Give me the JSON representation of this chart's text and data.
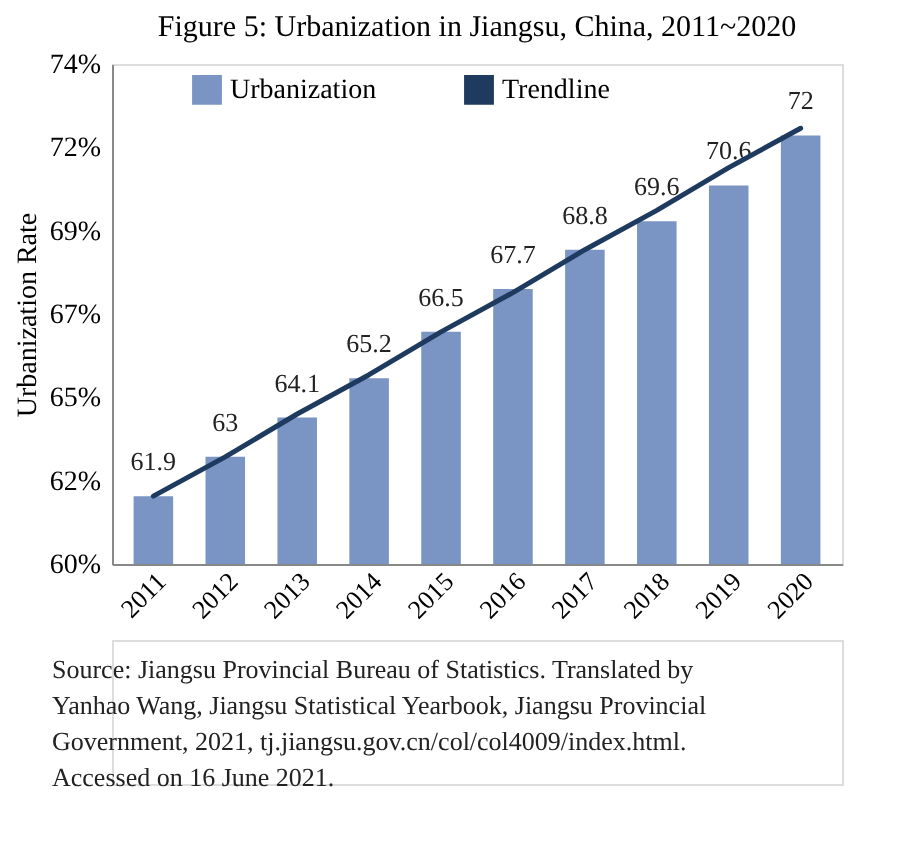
{
  "chart_data": {
    "type": "bar",
    "title": "Figure 5: Urbanization in Jiangsu, China, 2011~2020",
    "ylabel": "Urbanization Rate",
    "categories": [
      "2011",
      "2012",
      "2013",
      "2014",
      "2015",
      "2016",
      "2017",
      "2018",
      "2019",
      "2020"
    ],
    "series": [
      {
        "name": "Urbanization",
        "color": "#7a95c4",
        "values": [
          61.9,
          63,
          64.1,
          65.2,
          66.5,
          67.7,
          68.8,
          69.6,
          70.6,
          72
        ],
        "value_labels": [
          "61.9",
          "63",
          "64.1",
          "65.2",
          "66.5",
          "67.7",
          "68.8",
          "69.6",
          "70.6",
          "72"
        ]
      },
      {
        "name": "Trendline",
        "type": "line",
        "color": "#1f3a5f",
        "values": [
          61.9,
          63.0,
          64.2,
          65.3,
          66.5,
          67.6,
          68.8,
          69.9,
          71.1,
          72.2
        ]
      }
    ],
    "ylim": [
      60,
      74
    ],
    "yticks": [
      {
        "value": 60,
        "label": "60%"
      },
      {
        "value": 62.333,
        "label": "62%"
      },
      {
        "value": 64.667,
        "label": "65%"
      },
      {
        "value": 67,
        "label": "67%"
      },
      {
        "value": 69.333,
        "label": "69%"
      },
      {
        "value": 71.667,
        "label": "72%"
      },
      {
        "value": 74,
        "label": "74%"
      }
    ],
    "grid": false,
    "legend": "top",
    "annotations": [
      "Source: Jiangsu Provincial Bureau of Statistics. Translated by Yanhao Wang, Jiangsu Statistical Yearbook, Jiangsu Provincial Government, 2021, tj.jiangsu.gov.cn/col/col4009/index.html. Accessed on 16 June 2021."
    ]
  }
}
